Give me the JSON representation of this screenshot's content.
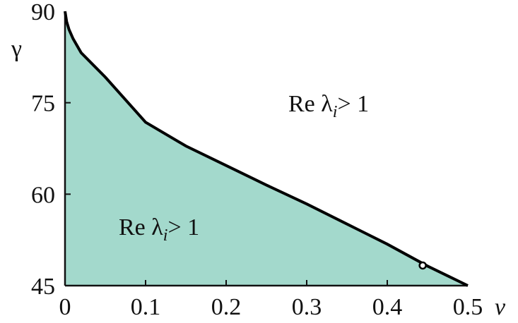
{
  "chart_data": {
    "type": "area",
    "xlabel": "v",
    "ylabel": "γ",
    "xlim": [
      0,
      0.5
    ],
    "ylim": [
      45,
      90
    ],
    "xticks": [
      "0",
      "0.1",
      "0.2",
      "0.3",
      "0.4",
      "0.5"
    ],
    "yticks": [
      "45",
      "60",
      "75",
      "90"
    ],
    "grid": false,
    "fill_color": "#a3d9cc",
    "curve_color": "#000000",
    "curve": {
      "x": [
        0,
        0.002,
        0.005,
        0.01,
        0.02,
        0.05,
        0.1,
        0.15,
        0.2,
        0.25,
        0.3,
        0.35,
        0.4,
        0.45,
        0.5
      ],
      "y": [
        90,
        88.3,
        87,
        85.5,
        83.2,
        79.2,
        71.8,
        67.9,
        64.7,
        61.5,
        58.4,
        55.1,
        51.8,
        48.2,
        45
      ]
    },
    "marker": {
      "x": 0.444,
      "y": 48.3
    },
    "annotations": [
      {
        "text": "Re λ",
        "sub": "i",
        "after": "> 1",
        "region": "above-curve"
      },
      {
        "text": "Re λ",
        "sub": "i",
        "after": "> 1",
        "region": "below-curve"
      }
    ]
  }
}
